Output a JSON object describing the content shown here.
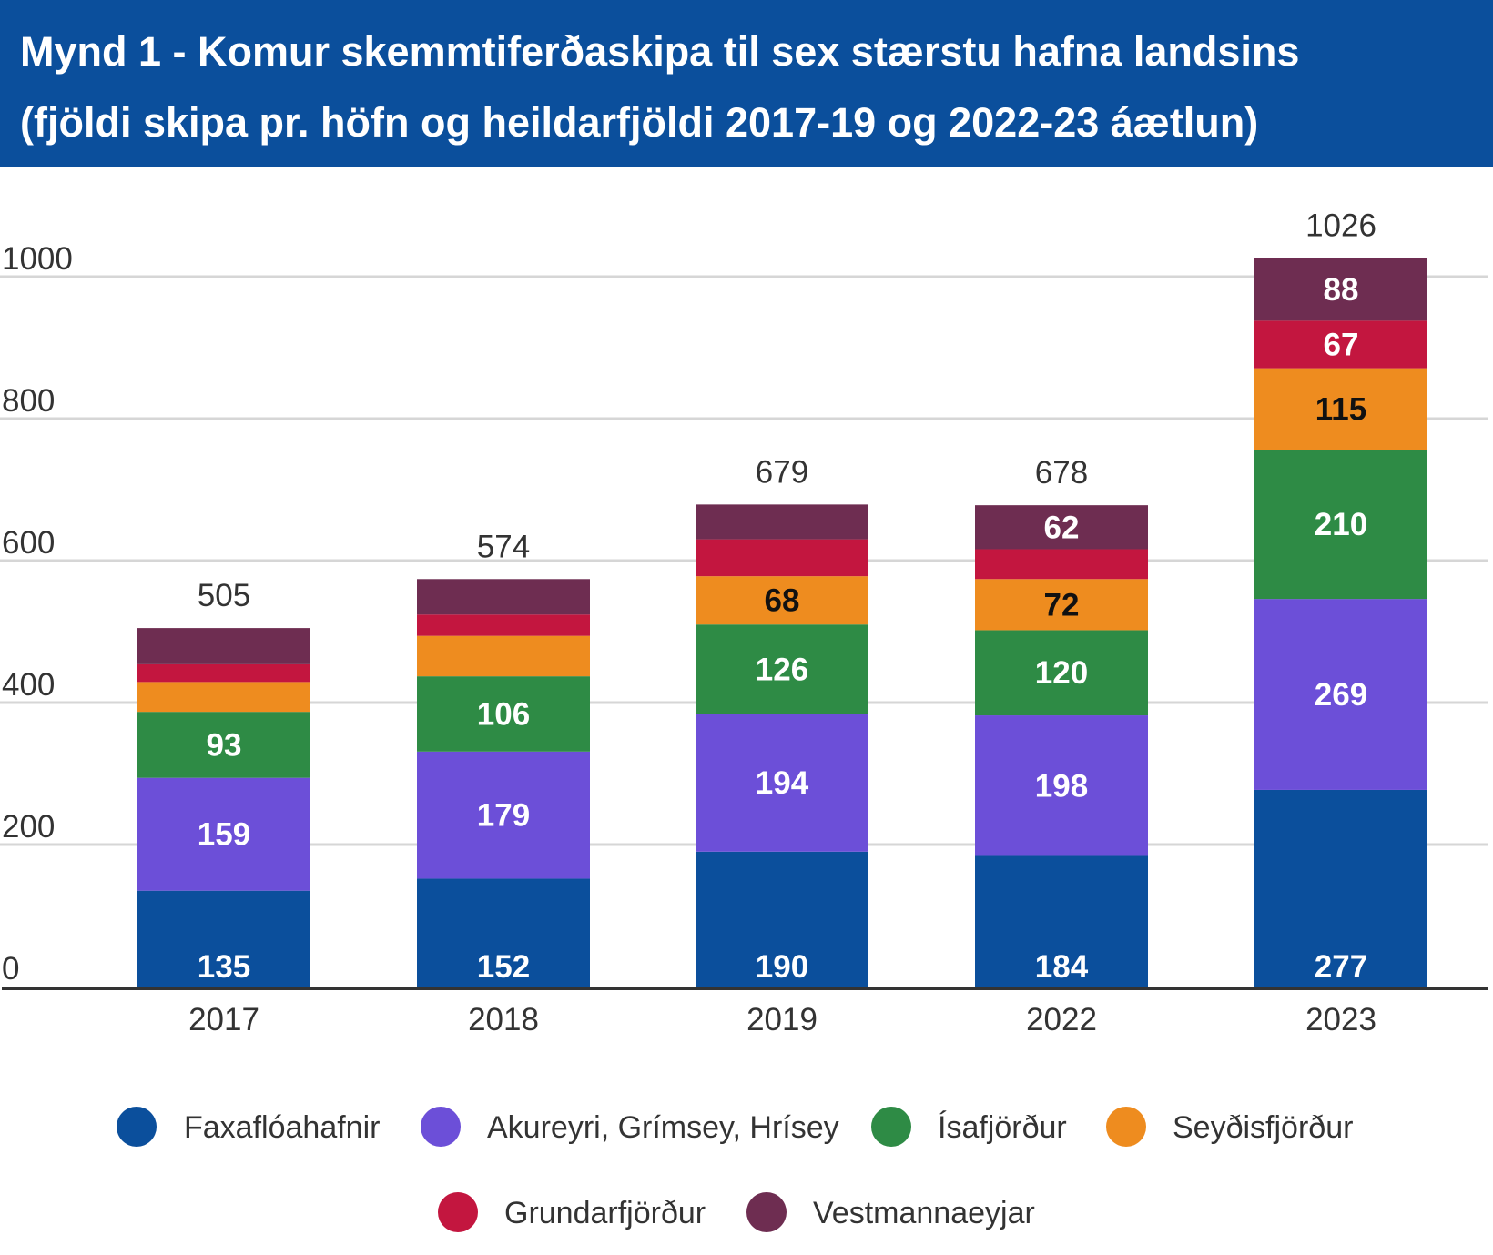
{
  "header": {
    "title_line1": "Mynd 1 - Komur skemmtiferðaskipa til sex stærstu hafna landsins",
    "title_line2": "(fjöldi skipa pr. höfn og heildarfjöldi 2017-19 og 2022-23 áætlun)"
  },
  "chart_data": {
    "type": "bar",
    "stacked": true,
    "categories": [
      "2017",
      "2018",
      "2019",
      "2022",
      "2023"
    ],
    "ylim": [
      0,
      1026
    ],
    "yticks": [
      0,
      200,
      400,
      600,
      800,
      1000
    ],
    "grid": true,
    "legend_position": "bottom",
    "totals": [
      505,
      574,
      679,
      678,
      1026
    ],
    "series": [
      {
        "name": "Faxaflóahafnir",
        "color": "#0b4f9c",
        "label_color": "#ffffff",
        "values": [
          135,
          152,
          190,
          184,
          277
        ],
        "labels": [
          "135",
          "152",
          "190",
          "184",
          "277"
        ]
      },
      {
        "name": "Akureyri, Grímsey, Hrísey",
        "color": "#6c4fd8",
        "label_color": "#ffffff",
        "values": [
          159,
          179,
          194,
          198,
          269
        ],
        "labels": [
          "159",
          "179",
          "194",
          "198",
          "269"
        ]
      },
      {
        "name": "Ísafjörður",
        "color": "#2e8b45",
        "label_color": "#ffffff",
        "values": [
          93,
          106,
          126,
          120,
          210
        ],
        "labels": [
          "93",
          "106",
          "126",
          "120",
          "210"
        ]
      },
      {
        "name": "Seyðisfjörður",
        "color": "#ee8c1f",
        "label_color": "#111111",
        "values": [
          42,
          57,
          68,
          72,
          115
        ],
        "labels": [
          "",
          "",
          "68",
          "72",
          "115"
        ]
      },
      {
        "name": "Grundarfjörður",
        "color": "#c3163f",
        "label_color": "#ffffff",
        "values": [
          25,
          30,
          52,
          42,
          67
        ],
        "labels": [
          "",
          "",
          "",
          "",
          "67"
        ]
      },
      {
        "name": "Vestmannaeyjar",
        "color": "#6e2d51",
        "label_color": "#ffffff",
        "values": [
          51,
          50,
          49,
          62,
          88
        ],
        "labels": [
          "",
          "",
          "",
          "62",
          "88"
        ]
      }
    ]
  }
}
